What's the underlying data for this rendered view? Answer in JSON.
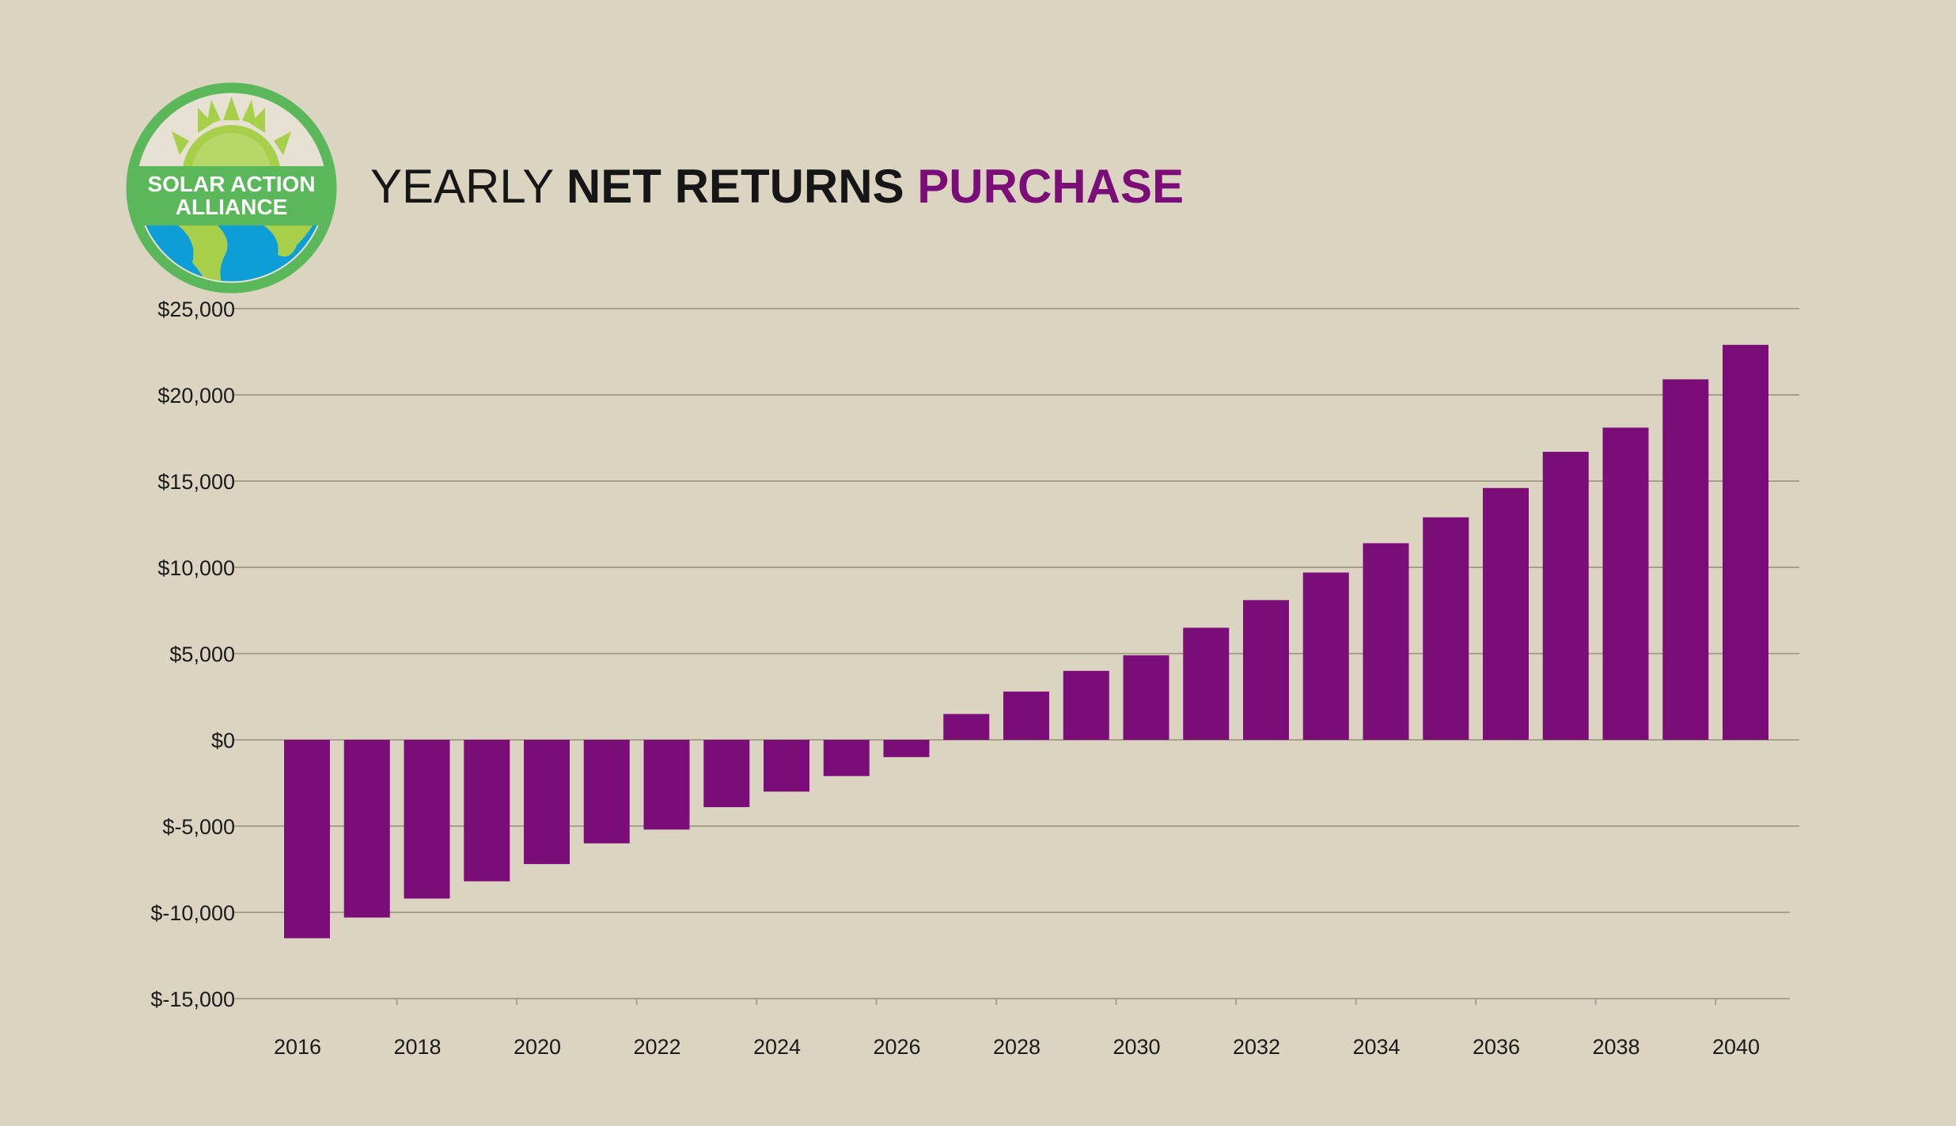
{
  "logo": {
    "line1": "SOLAR ACTION",
    "line2": "ALLIANCE",
    "ring_color": "#5ab85a",
    "sun_color": "#a8cf4a",
    "earth_color": "#0d9ed8"
  },
  "title": {
    "part1": "YEARLY ",
    "part2": "NET RETURNS ",
    "part3": "PURCHASE"
  },
  "chart_data": {
    "type": "bar",
    "categories": [
      "2016",
      "2017",
      "2018",
      "2019",
      "2020",
      "2021",
      "2022",
      "2023",
      "2024",
      "2025",
      "2026",
      "2027",
      "2028",
      "2029",
      "2030",
      "2031",
      "2032",
      "2033",
      "2034",
      "2035",
      "2036",
      "2037",
      "2038",
      "2039",
      "2040"
    ],
    "x_tick_labels": [
      "2016",
      "2018",
      "2020",
      "2022",
      "2024",
      "2026",
      "2028",
      "2030",
      "2032",
      "2034",
      "2036",
      "2038",
      "2040"
    ],
    "values": [
      -11500,
      -10300,
      -9200,
      -8200,
      -7200,
      -6000,
      -5200,
      -3900,
      -3000,
      -2100,
      -1000,
      1500,
      2800,
      4000,
      4900,
      6500,
      8100,
      9700,
      11400,
      12900,
      14600,
      16700,
      18100,
      20900,
      22900
    ],
    "y_ticks": [
      25000,
      20000,
      15000,
      10000,
      5000,
      0,
      -5000,
      -10000,
      -15000
    ],
    "y_tick_labels": [
      "$25,000",
      "$20,000",
      "$15,000",
      "$10,000",
      "$5,000",
      "$0",
      "$-5,000",
      "$-10,000",
      "$-15,000"
    ],
    "ylim": [
      -15000,
      25000
    ],
    "bar_color": "#7b0d79",
    "grid_color": "#a89f8c",
    "grid": true,
    "legend": false
  }
}
